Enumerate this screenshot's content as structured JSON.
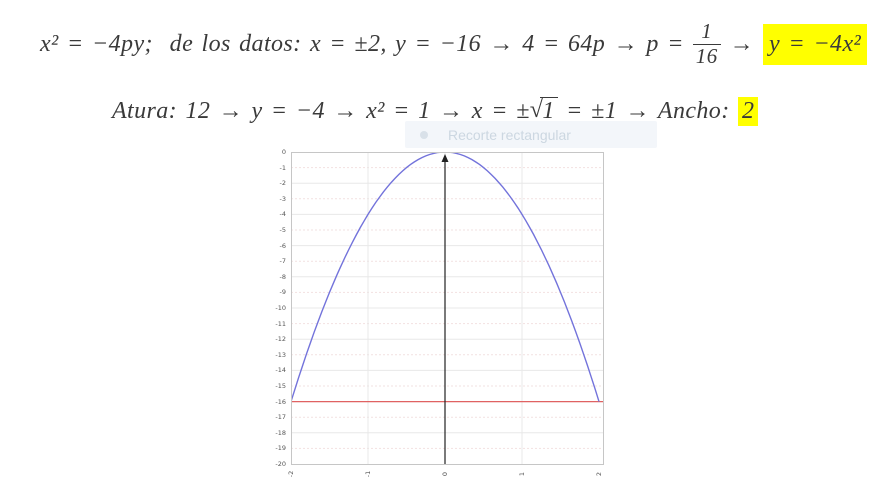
{
  "line1": {
    "pre": "x² = −4py;  de los datos: x = ±2, y = −16 → 4 = 64p → p =",
    "fraction": {
      "numerator": "1",
      "denominator": "16"
    },
    "arrow": "→",
    "highlight": "y = −4x²",
    "highlight_color": "#ffff00"
  },
  "line2": {
    "pre": "Atura: 12 → y = −4 → x² = 1 → x = ±",
    "sqrt_radicand": "1",
    "post": " = ±1 → Ancho: ",
    "highlight": "2",
    "highlight_color": "#ffff00"
  },
  "overlay": {
    "label": "Recorte rectangular",
    "icon": "bullet-dot"
  },
  "chart_data": {
    "type": "line",
    "title": "",
    "xlabel": "",
    "ylabel": "",
    "xlim": [
      -2,
      2
    ],
    "ylim": [
      -20,
      0
    ],
    "grid": true,
    "legend": "none",
    "x_tick_labels": [
      "-2",
      "-1",
      "0",
      "1",
      "2"
    ],
    "y_tick_labels": [
      "0",
      "-1",
      "-2",
      "-3",
      "-4",
      "-5",
      "-6",
      "-7",
      "-8",
      "-9",
      "-10",
      "-11",
      "-12",
      "-13",
      "-14",
      "-15",
      "-16",
      "-17",
      "-18",
      "-19",
      "-20"
    ],
    "series": [
      {
        "name": "parabola",
        "equation": "y = -4x²",
        "a": -4,
        "x_min": -2,
        "x_max": 2,
        "color": "#7373db",
        "vertex": [
          0,
          0
        ],
        "endpoints": [
          [
            -2,
            -16
          ],
          [
            2,
            -16
          ]
        ]
      },
      {
        "name": "horizontal-line",
        "equation": "y = -16",
        "y": -16,
        "color": "#e06262"
      }
    ],
    "axis_arrow": {
      "x": 0,
      "direction": "up",
      "color": "#222222"
    },
    "style": {
      "grid_major": "#e8e8e8",
      "grid_minor": "#f2e1e1",
      "border": "#c6c6c6",
      "tick_color": "#555555"
    }
  }
}
